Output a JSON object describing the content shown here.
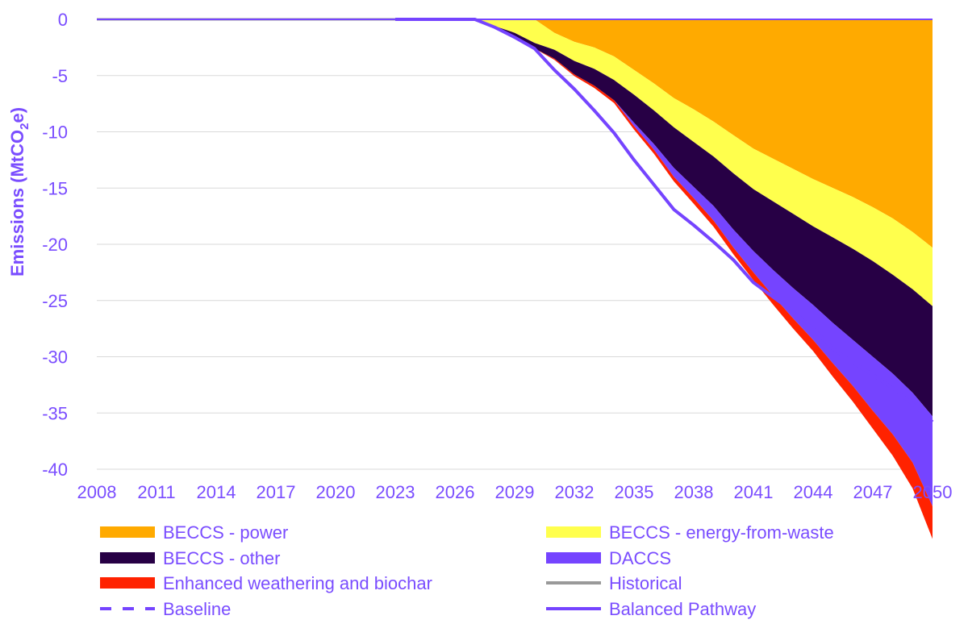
{
  "chart_data": {
    "type": "area",
    "title": "",
    "ylabel": "Emissions (MtCO2e)",
    "ylabel_main": "Emissions (MtCO",
    "ylabel_sub": "2",
    "ylabel_end": "e)",
    "xlim": [
      2008,
      2050
    ],
    "ylim": [
      -40,
      0
    ],
    "x_ticks": [
      2008,
      2011,
      2014,
      2017,
      2020,
      2023,
      2026,
      2029,
      2032,
      2035,
      2038,
      2041,
      2044,
      2047,
      2050
    ],
    "y_ticks": [
      0,
      -5,
      -10,
      -15,
      -20,
      -25,
      -30,
      -35,
      -40
    ],
    "grid": "horizontal",
    "legend_position": "bottom",
    "x": [
      2027,
      2028,
      2029,
      2030,
      2031,
      2032,
      2033,
      2034,
      2035,
      2036,
      2037,
      2038,
      2039,
      2040,
      2041,
      2042,
      2043,
      2044,
      2045,
      2046,
      2047,
      2048,
      2049,
      2050
    ],
    "series": [
      {
        "name": "BECCS - power",
        "color": "#ffaa00",
        "kind": "area",
        "values": [
          0,
          0,
          0,
          0,
          -1.2,
          -2.0,
          -2.5,
          -3.3,
          -4.5,
          -5.7,
          -7.0,
          -8.0,
          -9.1,
          -10.3,
          -11.5,
          -12.4,
          -13.3,
          -14.2,
          -15.0,
          -15.8,
          -16.7,
          -17.7,
          -18.9,
          -20.3
        ]
      },
      {
        "name": "BECCS - energy-from-waste",
        "color": "#ffff4d",
        "kind": "area",
        "values": [
          0,
          -0.6,
          -1.2,
          -2.1,
          -1.5,
          -1.7,
          -1.9,
          -2.1,
          -2.2,
          -2.4,
          -2.6,
          -2.9,
          -3.1,
          -3.4,
          -3.6,
          -3.8,
          -4.0,
          -4.2,
          -4.4,
          -4.6,
          -4.8,
          -5.0,
          -5.1,
          -5.2
        ]
      },
      {
        "name": "BECCS - other",
        "color": "#270045",
        "kind": "area",
        "values": [
          0,
          -0.1,
          -0.4,
          -0.5,
          -0.8,
          -1.2,
          -1.5,
          -1.8,
          -2.5,
          -3.0,
          -3.6,
          -4.0,
          -4.4,
          -5.0,
          -5.5,
          -6.1,
          -6.6,
          -7.0,
          -7.6,
          -8.1,
          -8.5,
          -8.8,
          -9.2,
          -9.8
        ]
      },
      {
        "name": "DACCS",
        "color": "#7544ff",
        "kind": "area",
        "values": [
          0,
          0,
          0,
          0,
          0,
          0,
          0,
          0,
          -0.3,
          -0.5,
          -0.8,
          -1.0,
          -1.3,
          -1.6,
          -1.9,
          -2.3,
          -2.7,
          -3.1,
          -3.6,
          -4.1,
          -4.8,
          -5.4,
          -6.2,
          -8.0
        ]
      },
      {
        "name": "Enhanced weathering and biochar",
        "color": "#ff2200",
        "kind": "area",
        "values": [
          0,
          0,
          0,
          0,
          -0.1,
          -0.15,
          -0.2,
          -0.25,
          -0.3,
          -0.35,
          -0.4,
          -0.5,
          -0.55,
          -0.6,
          -0.7,
          -0.8,
          -0.9,
          -1.0,
          -1.2,
          -1.4,
          -1.6,
          -1.9,
          -2.3,
          -2.9
        ]
      },
      {
        "name": "Historical",
        "color": "#999999",
        "kind": "line",
        "x": [
          2008,
          2023
        ],
        "values": [
          0,
          0
        ]
      },
      {
        "name": "Baseline",
        "color": "#7544ff",
        "kind": "dashed",
        "x": [
          2008,
          2050
        ],
        "values": [
          0,
          0
        ]
      },
      {
        "name": "Balanced Pathway",
        "color": "#7544ff",
        "kind": "line",
        "x": [
          2023,
          2027,
          2028,
          2029,
          2030,
          2031,
          2032,
          2033,
          2034,
          2035,
          2036,
          2037,
          2038,
          2039,
          2040,
          2041,
          2042,
          2043,
          2044,
          2045,
          2046,
          2047,
          2048,
          2049,
          2050
        ],
        "values": [
          0,
          0,
          -0.7,
          -1.6,
          -2.6,
          -4.5,
          -6.2,
          -8.1,
          -10.1,
          -12.5,
          -14.7,
          -16.9,
          -18.3,
          -19.8,
          -21.4,
          -23.4,
          -24.7,
          -26.0,
          -27.5,
          -29.3,
          -30.5,
          -31.6,
          -32.8,
          -34.2,
          -35.8
        ]
      }
    ]
  }
}
